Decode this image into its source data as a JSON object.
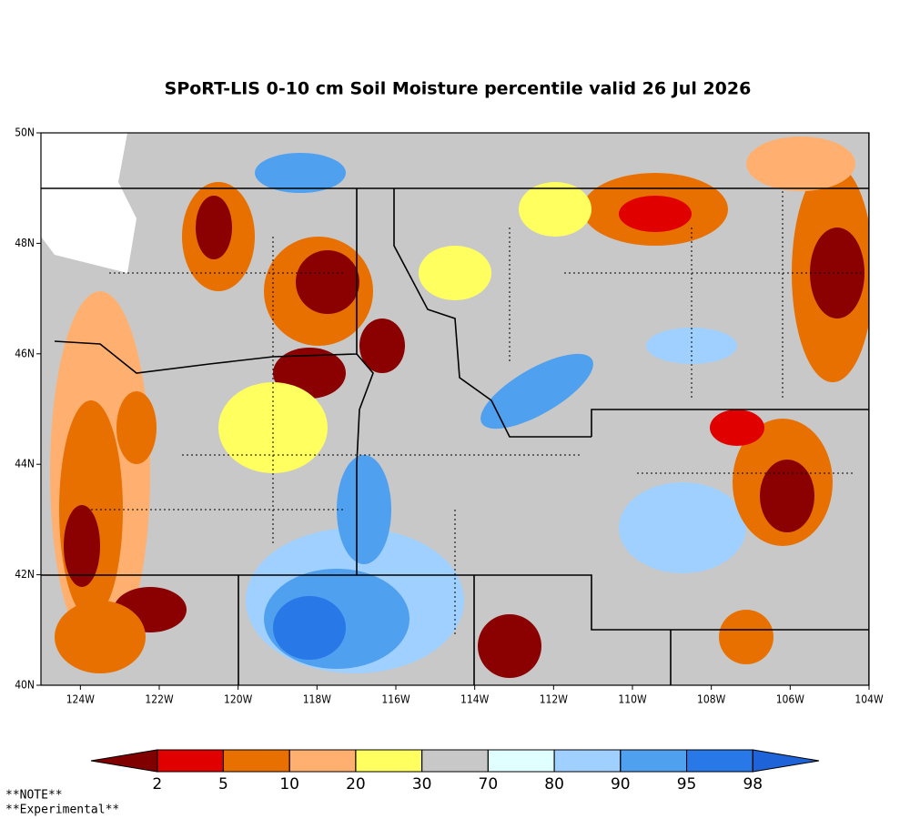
{
  "title": "SPoRT-LIS 0-10 cm Soil Moisture percentile valid 26 Jul 2026",
  "map": {
    "lonlim": [
      -125,
      -104
    ],
    "latlim": [
      40,
      50
    ],
    "xticks": [
      {
        "value": -124,
        "label": "124W"
      },
      {
        "value": -122,
        "label": "122W"
      },
      {
        "value": -120,
        "label": "120W"
      },
      {
        "value": -118,
        "label": "118W"
      },
      {
        "value": -116,
        "label": "116W"
      },
      {
        "value": -114,
        "label": "114W"
      },
      {
        "value": -112,
        "label": "112W"
      },
      {
        "value": -110,
        "label": "110W"
      },
      {
        "value": -108,
        "label": "108W"
      },
      {
        "value": -106,
        "label": "106W"
      },
      {
        "value": -104,
        "label": "104W"
      }
    ],
    "yticks": [
      {
        "value": 40,
        "label": "40N"
      },
      {
        "value": 42,
        "label": "42N"
      },
      {
        "value": 44,
        "label": "44N"
      },
      {
        "value": 46,
        "label": "46N"
      },
      {
        "value": 48,
        "label": "48N"
      },
      {
        "value": 50,
        "label": "50N"
      }
    ]
  },
  "colorbar": {
    "levels": [
      2,
      5,
      10,
      20,
      30,
      70,
      80,
      90,
      95,
      98
    ],
    "colors": [
      "#800000",
      "#e00000",
      "#e87000",
      "#ffb070",
      "#ffff60",
      "#c8c8c8",
      "#e0ffff",
      "#a0d0ff",
      "#50a0f0",
      "#2878e8",
      "#1e64d8"
    ]
  },
  "notes": [
    "**NOTE**",
    "**Experimental**"
  ]
}
